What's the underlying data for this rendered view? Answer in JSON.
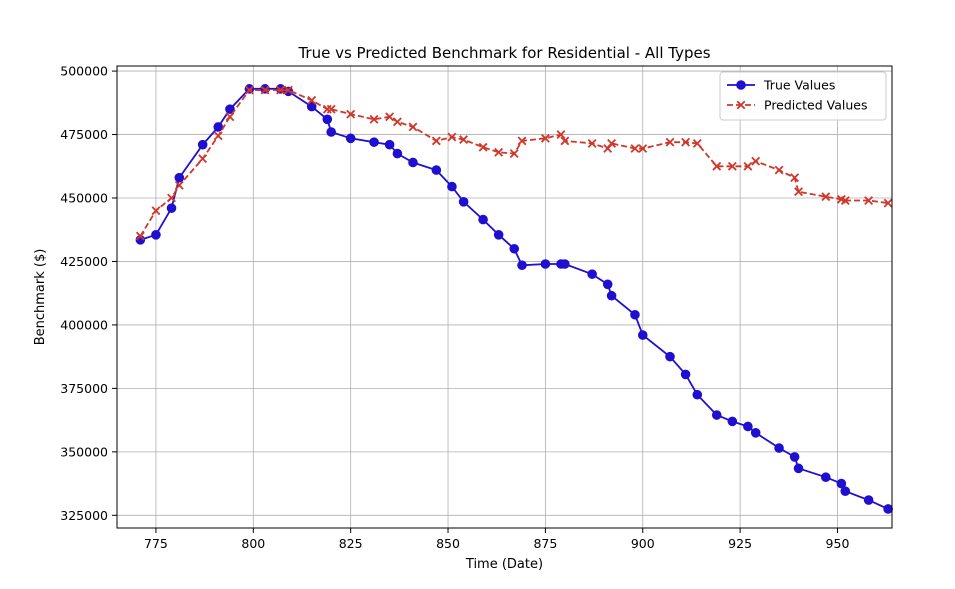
{
  "colors": {
    "true_series": "#1f0fd0",
    "pred_series": "#d0372b",
    "grid": "#b0b0b0",
    "axis": "#000000"
  },
  "chart_data": {
    "type": "line",
    "title": "True vs Predicted Benchmark for Residential - All Types",
    "xlabel": "Time (Date)",
    "ylabel": "Benchmark ($)",
    "xlim": [
      765,
      964
    ],
    "ylim": [
      320000,
      502000
    ],
    "xticks": [
      775,
      800,
      825,
      850,
      875,
      900,
      925,
      950
    ],
    "yticks": [
      325000,
      350000,
      375000,
      400000,
      425000,
      450000,
      475000,
      500000
    ],
    "grid": true,
    "legend_position": "top-right",
    "series": [
      {
        "name": "True Values",
        "marker": "circle",
        "linestyle": "solid",
        "color": "#1f0fd0",
        "x": [
          771,
          775,
          779,
          781,
          787,
          791,
          794,
          799,
          803,
          807,
          809,
          815,
          819,
          820,
          825,
          831,
          835,
          837,
          841,
          847,
          851,
          854,
          859,
          863,
          867,
          869,
          875,
          879,
          880,
          887,
          891,
          892,
          898,
          900,
          907,
          911,
          914,
          919,
          923,
          927,
          929,
          935,
          939,
          940,
          947,
          951,
          952,
          958,
          963
        ],
        "y": [
          433500,
          435500,
          446000,
          458000,
          471000,
          478000,
          485000,
          493000,
          493000,
          493000,
          492000,
          486000,
          481000,
          476000,
          473500,
          472000,
          471000,
          467500,
          464000,
          461000,
          454500,
          448500,
          441500,
          435500,
          430000,
          423500,
          424000,
          424000,
          424000,
          420000,
          416000,
          411500,
          404000,
          396000,
          387500,
          380500,
          372500,
          364500,
          362000,
          360000,
          357500,
          351500,
          348000,
          343500,
          340000,
          337500,
          334500,
          331000,
          327500
        ]
      },
      {
        "name": "Predicted Values",
        "marker": "x",
        "linestyle": "dashed",
        "color": "#d0372b",
        "x": [
          771,
          775,
          779,
          781,
          787,
          791,
          794,
          799,
          803,
          807,
          809,
          815,
          819,
          820,
          825,
          831,
          835,
          837,
          841,
          847,
          851,
          854,
          859,
          863,
          867,
          869,
          875,
          879,
          880,
          887,
          891,
          892,
          898,
          900,
          907,
          911,
          914,
          919,
          923,
          927,
          929,
          935,
          939,
          940,
          947,
          951,
          952,
          958,
          963
        ],
        "y": [
          435000,
          445000,
          450000,
          455000,
          465500,
          474500,
          482000,
          492500,
          492500,
          492500,
          492500,
          488500,
          485000,
          485000,
          483000,
          481000,
          482000,
          480000,
          478000,
          472500,
          474000,
          473000,
          470000,
          468000,
          467500,
          472500,
          473500,
          475000,
          472500,
          471500,
          469500,
          471500,
          469500,
          469500,
          472000,
          472000,
          471500,
          462500,
          462500,
          462500,
          464500,
          461000,
          458000,
          452500,
          450500,
          449500,
          449000,
          449000,
          448000
        ]
      }
    ]
  }
}
